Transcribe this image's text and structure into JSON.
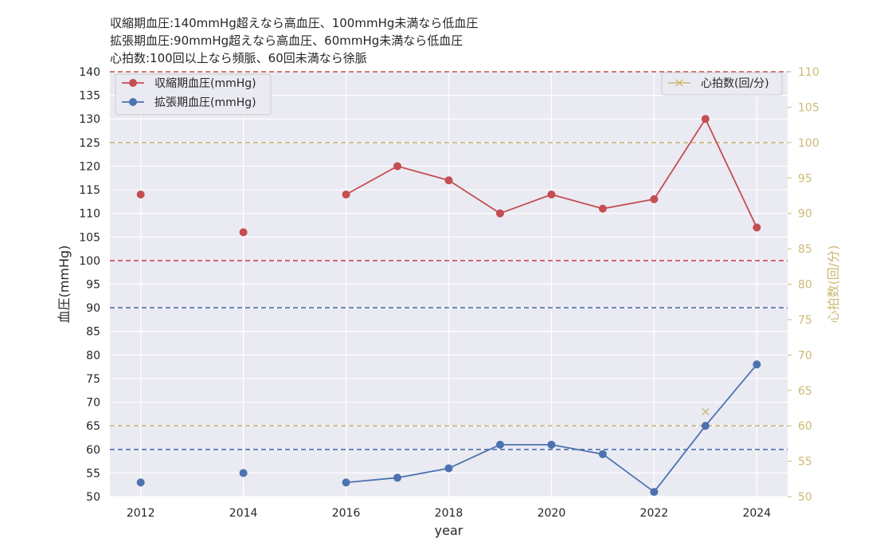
{
  "notes": [
    "収縮期血圧:140mmHg超えなら高血圧、100mmHg未満なら低血圧",
    "拡張期血圧:90mmHg超えなら高血圧、60mmHg未満なら低血圧",
    "心拍数:100回以上なら頻脈、60回未満なら徐脈"
  ],
  "chart_data": {
    "type": "line",
    "xlabel": "year",
    "ylabel_left": "血圧(mmHg)",
    "ylabel_right": "心拍数(回/分)",
    "xlim": [
      2011.4,
      2024.6
    ],
    "ylim_left": [
      50,
      140
    ],
    "ylim_right": [
      50,
      110
    ],
    "xticks": [
      2012,
      2014,
      2016,
      2018,
      2020,
      2022,
      2024
    ],
    "yticks_left": [
      50,
      55,
      60,
      65,
      70,
      75,
      80,
      85,
      90,
      95,
      100,
      105,
      110,
      115,
      120,
      125,
      130,
      135,
      140
    ],
    "yticks_right": [
      50,
      55,
      60,
      65,
      70,
      75,
      80,
      85,
      90,
      95,
      100,
      105,
      110
    ],
    "grid": true,
    "series": [
      {
        "name": "収縮期血圧(mmHg)",
        "axis": "left",
        "color": "#c44e52",
        "marker": "circle",
        "x": [
          2012,
          2014,
          2016,
          2017,
          2018,
          2019,
          2020,
          2021,
          2022,
          2023,
          2024
        ],
        "y": [
          114,
          106,
          114,
          120,
          117,
          110,
          114,
          111,
          113,
          130,
          107
        ]
      },
      {
        "name": "拡張期血圧(mmHg)",
        "axis": "left",
        "color": "#4c72b0",
        "marker": "circle",
        "x": [
          2012,
          2014,
          2016,
          2017,
          2018,
          2019,
          2020,
          2021,
          2022,
          2023,
          2024
        ],
        "y": [
          53,
          55,
          53,
          54,
          56,
          61,
          61,
          59,
          51,
          65,
          78
        ]
      },
      {
        "name": "心拍数(回/分)",
        "axis": "right",
        "color": "#ccb974",
        "marker": "x",
        "x": [
          2023
        ],
        "y": [
          62
        ]
      }
    ],
    "reference_lines": [
      {
        "axis": "left",
        "y": 140,
        "color": "#c44e52"
      },
      {
        "axis": "left",
        "y": 100,
        "color": "#c44e52"
      },
      {
        "axis": "left",
        "y": 90,
        "color": "#4c72b0"
      },
      {
        "axis": "left",
        "y": 60,
        "color": "#4c72b0"
      },
      {
        "axis": "right",
        "y": 100,
        "color": "#ccb974"
      },
      {
        "axis": "right",
        "y": 60,
        "color": "#ccb974"
      }
    ],
    "legend_left_placement": "top-left",
    "legend_right_placement": "top-right"
  }
}
